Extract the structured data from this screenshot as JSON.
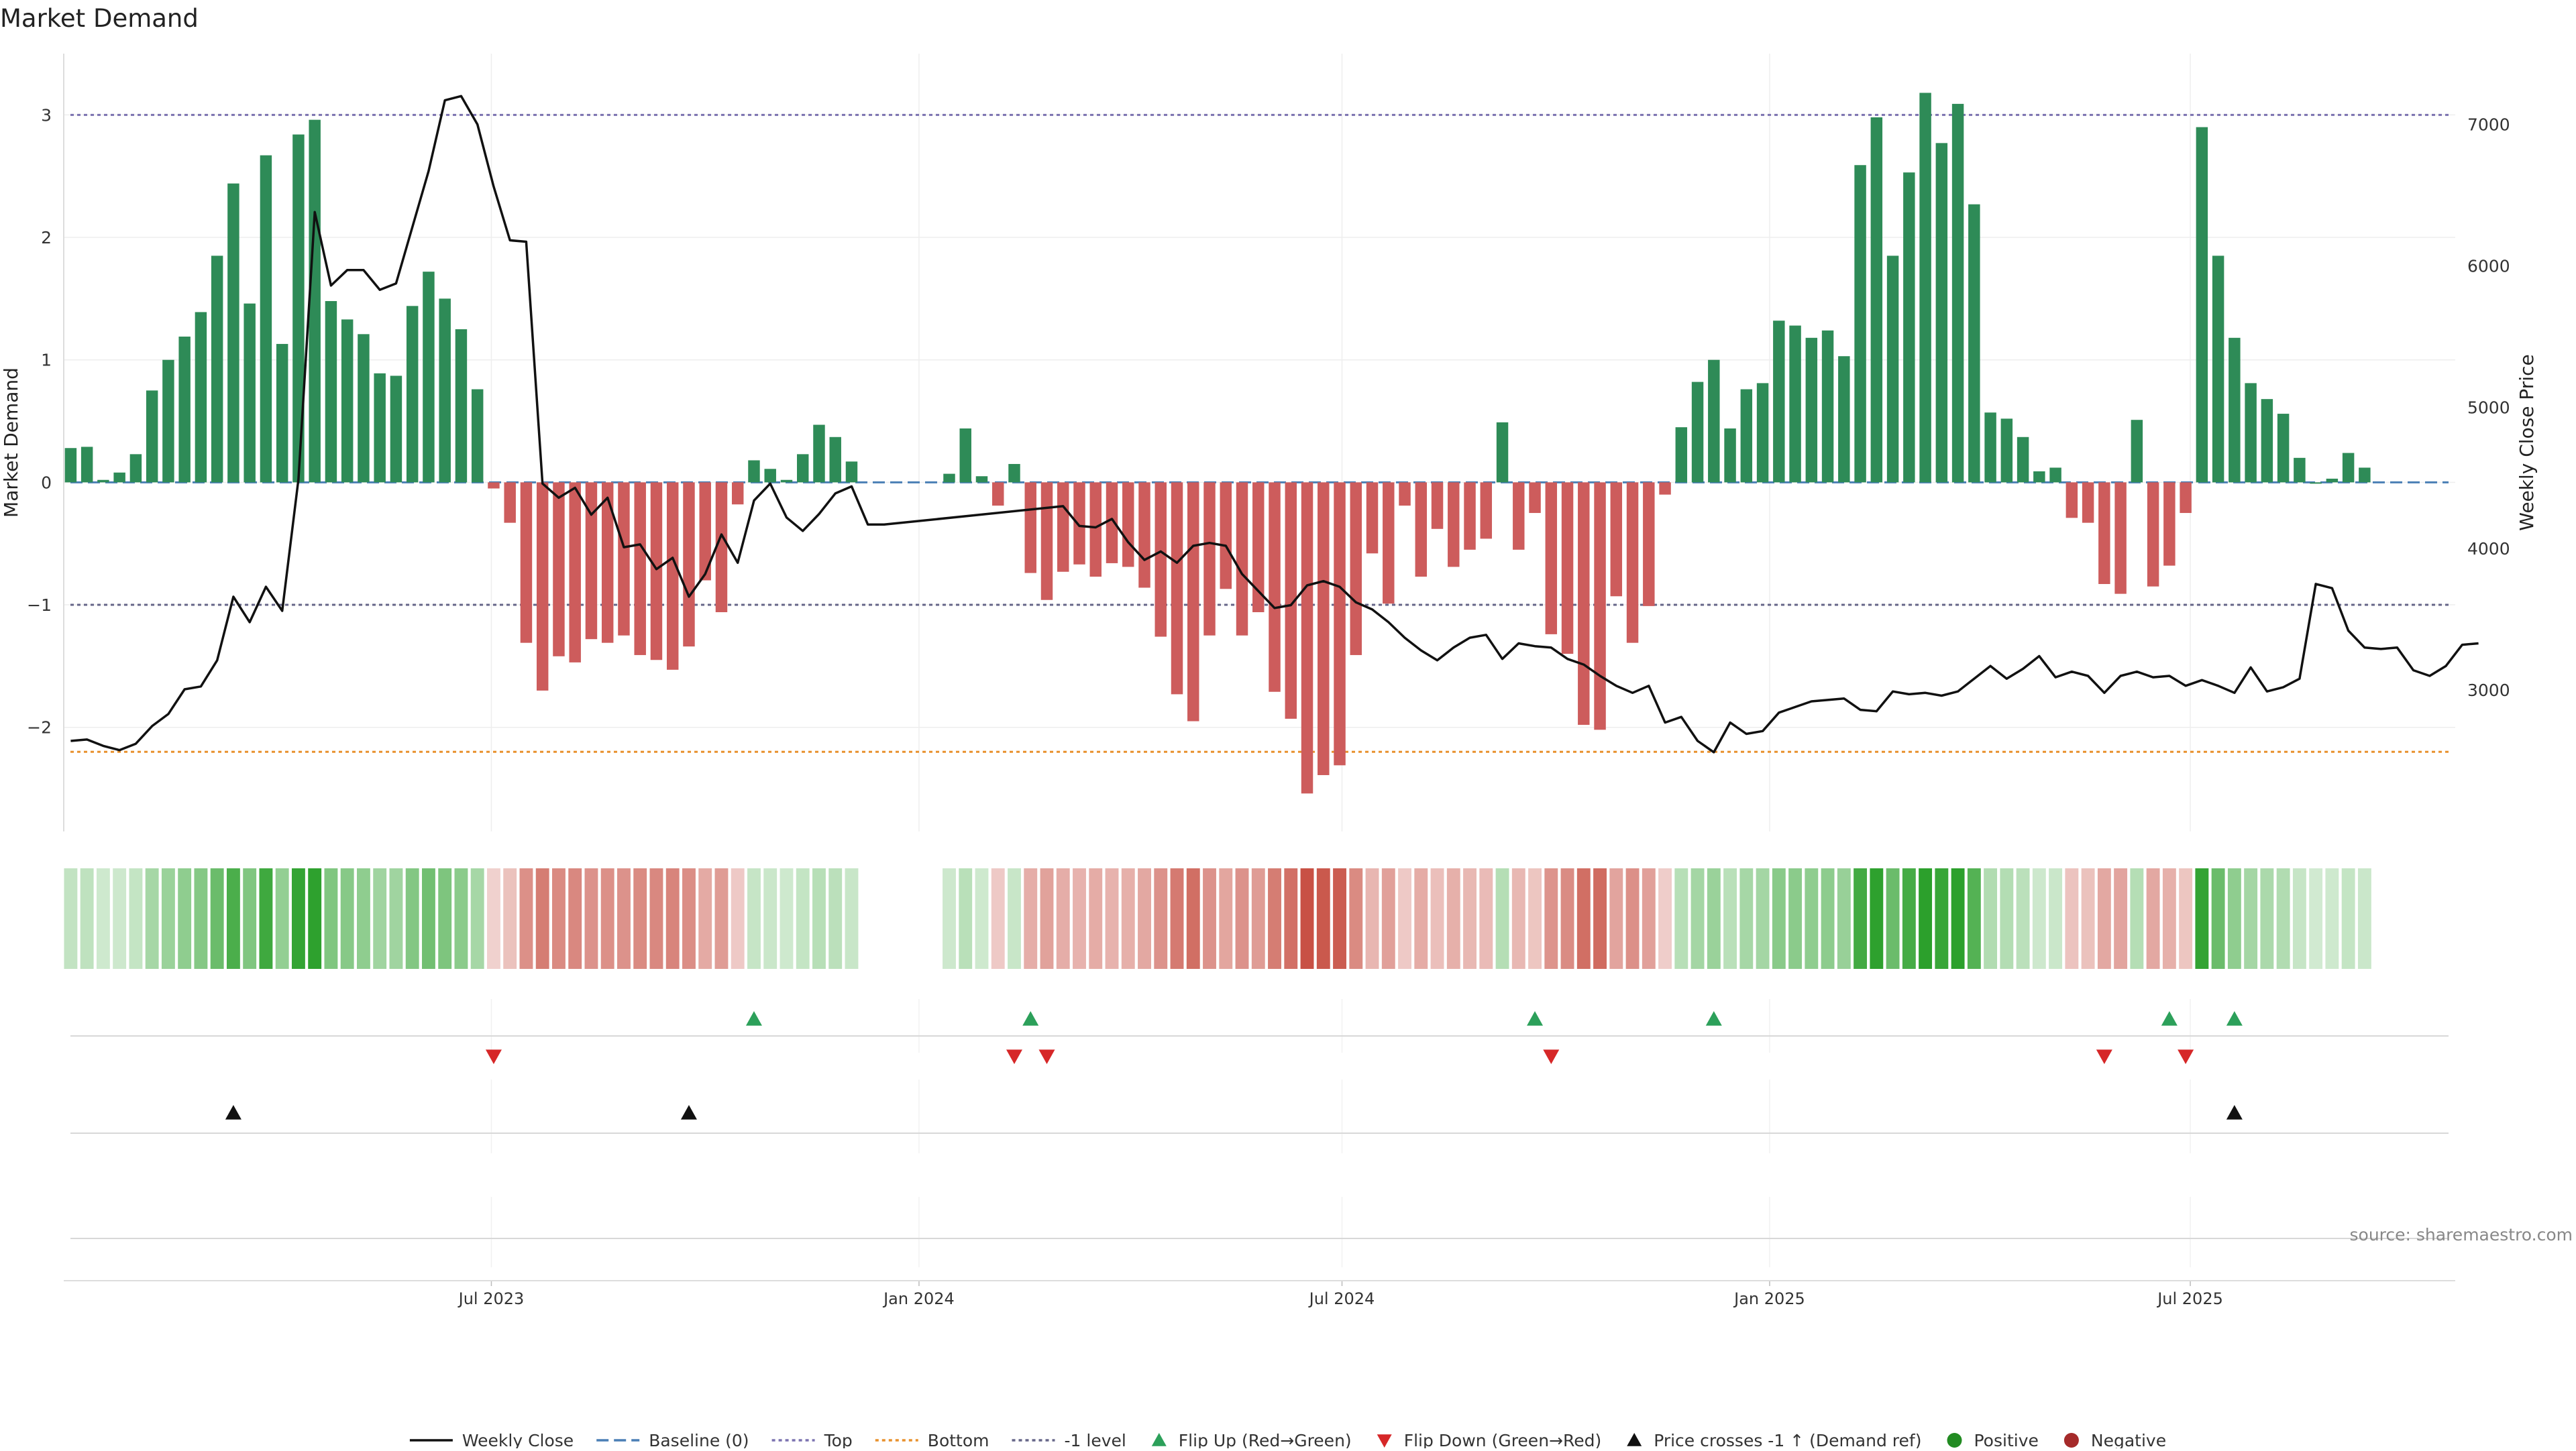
{
  "chart_data": {
    "type": "bar",
    "title": "Market Demand",
    "ylabel": "Market Demand",
    "y2label": "Weekly Close Price",
    "ylim": [
      -2.85,
      3.5
    ],
    "y2lim": [
      2000,
      7500
    ],
    "yticks": [
      {
        "value": 3,
        "label": "3"
      },
      {
        "value": 2,
        "label": "2"
      },
      {
        "value": 1,
        "label": "1"
      },
      {
        "value": 0,
        "label": "0"
      },
      {
        "value": -1,
        "label": "−1"
      },
      {
        "value": -2,
        "label": "−2"
      }
    ],
    "y2ticks": [
      {
        "value": 7000,
        "label": "7000"
      },
      {
        "value": 6000,
        "label": "6000"
      },
      {
        "value": 5000,
        "label": "5000"
      },
      {
        "value": 4000,
        "label": "4000"
      },
      {
        "value": 3000,
        "label": "3000"
      }
    ],
    "start_date": "2023-01-01",
    "end_date": "2025-10-19",
    "x_range": [
      "2022-12-29",
      "2025-10-23"
    ],
    "xticks": [
      {
        "date": "2023-07-01",
        "label": "Jul 2023"
      },
      {
        "date": "2024-01-01",
        "label": "Jan 2024"
      },
      {
        "date": "2024-07-01",
        "label": "Jul 2024"
      },
      {
        "date": "2025-01-01",
        "label": "Jan 2025"
      },
      {
        "date": "2025-07-01",
        "label": "Jul 2025"
      }
    ],
    "reference_lines": [
      {
        "name": "Baseline (0)",
        "value": 0,
        "color": "#4a7fb5",
        "style": "dashed"
      },
      {
        "name": "Top",
        "value": 3.0,
        "color": "#7b72b0",
        "style": "dotted"
      },
      {
        "name": "Bottom",
        "value": -2.2,
        "color": "#e8912d",
        "style": "dotted"
      },
      {
        "name": "-1 level",
        "value": -1,
        "color": "#666688",
        "style": "dotted"
      }
    ],
    "demand_values": [
      0.28,
      0.29,
      0.02,
      0.08,
      0.23,
      0.75,
      1.0,
      1.19,
      1.39,
      1.85,
      2.44,
      1.46,
      2.67,
      1.13,
      2.84,
      2.96,
      1.48,
      1.33,
      1.21,
      0.89,
      0.87,
      1.44,
      1.72,
      1.5,
      1.25,
      0.76,
      -0.05,
      -0.33,
      -1.31,
      -1.7,
      -1.42,
      -1.47,
      -1.28,
      -1.31,
      -1.25,
      -1.41,
      -1.45,
      -1.53,
      -1.34,
      -0.8,
      -1.06,
      -0.18,
      0.18,
      0.11,
      0.02,
      0.23,
      0.47,
      0.37,
      0.17,
      null,
      null,
      null,
      null,
      null,
      0.07,
      0.44,
      0.05,
      -0.19,
      0.15,
      -0.74,
      -0.96,
      -0.73,
      -0.67,
      -0.77,
      -0.66,
      -0.69,
      -0.86,
      -1.26,
      -1.73,
      -1.95,
      -1.25,
      -0.87,
      -1.25,
      -1.06,
      -1.71,
      -1.93,
      -2.54,
      -2.39,
      -2.31,
      -1.41,
      -0.58,
      -0.99,
      -0.19,
      -0.77,
      -0.38,
      -0.69,
      -0.55,
      -0.46,
      0.49,
      -0.55,
      -0.25,
      -1.24,
      -1.4,
      -1.98,
      -2.02,
      -0.93,
      -1.31,
      -1.01,
      -0.1,
      0.45,
      0.82,
      1.0,
      0.44,
      0.76,
      0.81,
      1.32,
      1.28,
      1.18,
      1.24,
      1.03,
      2.59,
      2.98,
      1.85,
      2.53,
      3.18,
      2.77,
      3.09,
      2.27,
      0.57,
      0.52,
      0.37,
      0.09,
      0.12,
      -0.29,
      -0.33,
      -0.83,
      -0.91,
      0.51,
      -0.85,
      -0.68,
      -0.25,
      2.9,
      1.85,
      1.18,
      0.81,
      0.68,
      0.56,
      0.2,
      0.0,
      0.03,
      0.24,
      0.12
    ],
    "price_series": [
      [
        "2023-01-01",
        2640
      ],
      [
        "2023-01-08",
        2650
      ],
      [
        "2023-01-15",
        2605
      ],
      [
        "2023-01-22",
        2575
      ],
      [
        "2023-01-29",
        2620
      ],
      [
        "2023-02-05",
        2745
      ],
      [
        "2023-02-12",
        2830
      ],
      [
        "2023-02-19",
        3005
      ],
      [
        "2023-02-26",
        3025
      ],
      [
        "2023-03-05",
        3210
      ],
      [
        "2023-03-12",
        3660
      ],
      [
        "2023-03-19",
        3480
      ],
      [
        "2023-03-26",
        3730
      ],
      [
        "2023-04-02",
        3560
      ],
      [
        "2023-04-09",
        4490
      ],
      [
        "2023-04-16",
        6380
      ],
      [
        "2023-04-23",
        5860
      ],
      [
        "2023-04-30",
        5970
      ],
      [
        "2023-05-07",
        5970
      ],
      [
        "2023-05-14",
        5830
      ],
      [
        "2023-05-21",
        5875
      ],
      [
        "2023-06-04",
        6670
      ],
      [
        "2023-06-11",
        7170
      ],
      [
        "2023-06-18",
        7200
      ],
      [
        "2023-06-25",
        7000
      ],
      [
        "2023-07-02",
        6560
      ],
      [
        "2023-07-09",
        6180
      ],
      [
        "2023-07-16",
        6170
      ],
      [
        "2023-07-23",
        4460
      ],
      [
        "2023-07-30",
        4360
      ],
      [
        "2023-08-06",
        4430
      ],
      [
        "2023-08-13",
        4240
      ],
      [
        "2023-08-20",
        4360
      ],
      [
        "2023-08-27",
        4010
      ],
      [
        "2023-09-03",
        4030
      ],
      [
        "2023-09-10",
        3855
      ],
      [
        "2023-09-17",
        3935
      ],
      [
        "2023-09-24",
        3660
      ],
      [
        "2023-10-01",
        3820
      ],
      [
        "2023-10-08",
        4100
      ],
      [
        "2023-10-15",
        3900
      ],
      [
        "2023-10-22",
        4340
      ],
      [
        "2023-10-29",
        4460
      ],
      [
        "2023-11-05",
        4220
      ],
      [
        "2023-11-12",
        4125
      ],
      [
        "2023-11-19",
        4245
      ],
      [
        "2023-11-26",
        4390
      ],
      [
        "2023-12-03",
        4440
      ],
      [
        "2023-12-10",
        4170
      ],
      [
        "2023-12-17",
        4170
      ],
      [
        "2024-03-03",
        4300
      ],
      [
        "2024-03-10",
        4160
      ],
      [
        "2024-03-17",
        4150
      ],
      [
        "2024-03-24",
        4210
      ],
      [
        "2024-03-31",
        4045
      ],
      [
        "2024-04-07",
        3920
      ],
      [
        "2024-04-14",
        3980
      ],
      [
        "2024-04-21",
        3900
      ],
      [
        "2024-04-28",
        4020
      ],
      [
        "2024-05-05",
        4040
      ],
      [
        "2024-05-12",
        4020
      ],
      [
        "2024-05-19",
        3820
      ],
      [
        "2024-05-26",
        3700
      ],
      [
        "2024-06-02",
        3580
      ],
      [
        "2024-06-09",
        3600
      ],
      [
        "2024-06-16",
        3740
      ],
      [
        "2024-06-23",
        3770
      ],
      [
        "2024-06-30",
        3730
      ],
      [
        "2024-07-07",
        3620
      ],
      [
        "2024-07-14",
        3570
      ],
      [
        "2024-07-21",
        3480
      ],
      [
        "2024-07-28",
        3370
      ],
      [
        "2024-08-04",
        3280
      ],
      [
        "2024-08-11",
        3210
      ],
      [
        "2024-08-18",
        3300
      ],
      [
        "2024-08-25",
        3370
      ],
      [
        "2024-09-01",
        3390
      ],
      [
        "2024-09-08",
        3220
      ],
      [
        "2024-09-15",
        3330
      ],
      [
        "2024-09-22",
        3310
      ],
      [
        "2024-09-29",
        3300
      ],
      [
        "2024-10-06",
        3220
      ],
      [
        "2024-10-13",
        3180
      ],
      [
        "2024-10-20",
        3100
      ],
      [
        "2024-10-27",
        3030
      ],
      [
        "2024-11-03",
        2980
      ],
      [
        "2024-11-10",
        3030
      ],
      [
        "2024-11-17",
        2770
      ],
      [
        "2024-11-24",
        2810
      ],
      [
        "2024-12-01",
        2640
      ],
      [
        "2024-12-08",
        2560
      ],
      [
        "2024-12-15",
        2770
      ],
      [
        "2024-12-22",
        2690
      ],
      [
        "2024-12-29",
        2710
      ],
      [
        "2025-01-05",
        2840
      ],
      [
        "2025-01-12",
        2880
      ],
      [
        "2025-01-19",
        2920
      ],
      [
        "2025-01-26",
        2930
      ],
      [
        "2025-02-02",
        2940
      ],
      [
        "2025-02-09",
        2860
      ],
      [
        "2025-02-16",
        2850
      ],
      [
        "2025-02-23",
        2990
      ],
      [
        "2025-03-02",
        2970
      ],
      [
        "2025-03-09",
        2980
      ],
      [
        "2025-03-16",
        2960
      ],
      [
        "2025-03-23",
        2990
      ],
      [
        "2025-03-30",
        3080
      ],
      [
        "2025-04-06",
        3170
      ],
      [
        "2025-04-13",
        3080
      ],
      [
        "2025-04-20",
        3150
      ],
      [
        "2025-04-27",
        3240
      ],
      [
        "2025-05-04",
        3090
      ],
      [
        "2025-05-11",
        3130
      ],
      [
        "2025-05-18",
        3100
      ],
      [
        "2025-05-25",
        2980
      ],
      [
        "2025-06-01",
        3100
      ],
      [
        "2025-06-08",
        3130
      ],
      [
        "2025-06-15",
        3090
      ],
      [
        "2025-06-22",
        3100
      ],
      [
        "2025-06-29",
        3030
      ],
      [
        "2025-07-06",
        3070
      ],
      [
        "2025-07-13",
        3030
      ],
      [
        "2025-07-20",
        2980
      ],
      [
        "2025-07-27",
        3160
      ],
      [
        "2025-08-03",
        2990
      ],
      [
        "2025-08-10",
        3020
      ],
      [
        "2025-08-17",
        3080
      ],
      [
        "2025-08-24",
        3750
      ],
      [
        "2025-08-31",
        3720
      ],
      [
        "2025-09-07",
        3420
      ],
      [
        "2025-09-14",
        3300
      ],
      [
        "2025-09-21",
        3290
      ],
      [
        "2025-09-28",
        3300
      ],
      [
        "2025-10-05",
        3140
      ],
      [
        "2025-10-12",
        3100
      ],
      [
        "2025-10-19",
        3170
      ],
      [
        "2025-10-26",
        3320
      ],
      [
        "2025-11-02",
        3330
      ]
    ],
    "flip_up_indices": [
      42,
      59,
      90,
      101,
      129,
      133
    ],
    "flip_down_indices": [
      26,
      58,
      60,
      91,
      125,
      130
    ],
    "price_cross_indices": [
      10,
      38,
      133
    ],
    "colors": {
      "positive": "#2e8b57",
      "negative": "#cd5c5c",
      "price_line": "#111111",
      "flip_up": "#2ca05a",
      "flip_down": "#d62728",
      "cross": "#111111",
      "heat_positive": "#2ca02c",
      "heat_negative": "#c0392b",
      "grid": "#eeeeee",
      "axis": "#dddddd"
    },
    "source_label": "source: sharemaestro.com",
    "legend": [
      {
        "name": "Weekly Close",
        "kind": "line",
        "color": "#111111",
        "style": "solid"
      },
      {
        "name": "Baseline (0)",
        "kind": "line",
        "color": "#4a7fb5",
        "style": "dashed"
      },
      {
        "name": "Top",
        "kind": "line",
        "color": "#7b72b0",
        "style": "dotted"
      },
      {
        "name": "Bottom",
        "kind": "line",
        "color": "#e8912d",
        "style": "dotted"
      },
      {
        "name": "-1 level",
        "kind": "line",
        "color": "#666688",
        "style": "dotted"
      },
      {
        "name": "Flip Up (Red→Green)",
        "kind": "tri-up",
        "color": "#2ca05a"
      },
      {
        "name": "Flip Down (Green→Red)",
        "kind": "tri-down",
        "color": "#d62728"
      },
      {
        "name": "Price crosses -1 ↑ (Demand ref)",
        "kind": "tri-up",
        "color": "#111111"
      },
      {
        "name": "Positive",
        "kind": "dot",
        "color": "#228b22"
      },
      {
        "name": "Negative",
        "kind": "dot",
        "color": "#a52a2a"
      }
    ]
  }
}
